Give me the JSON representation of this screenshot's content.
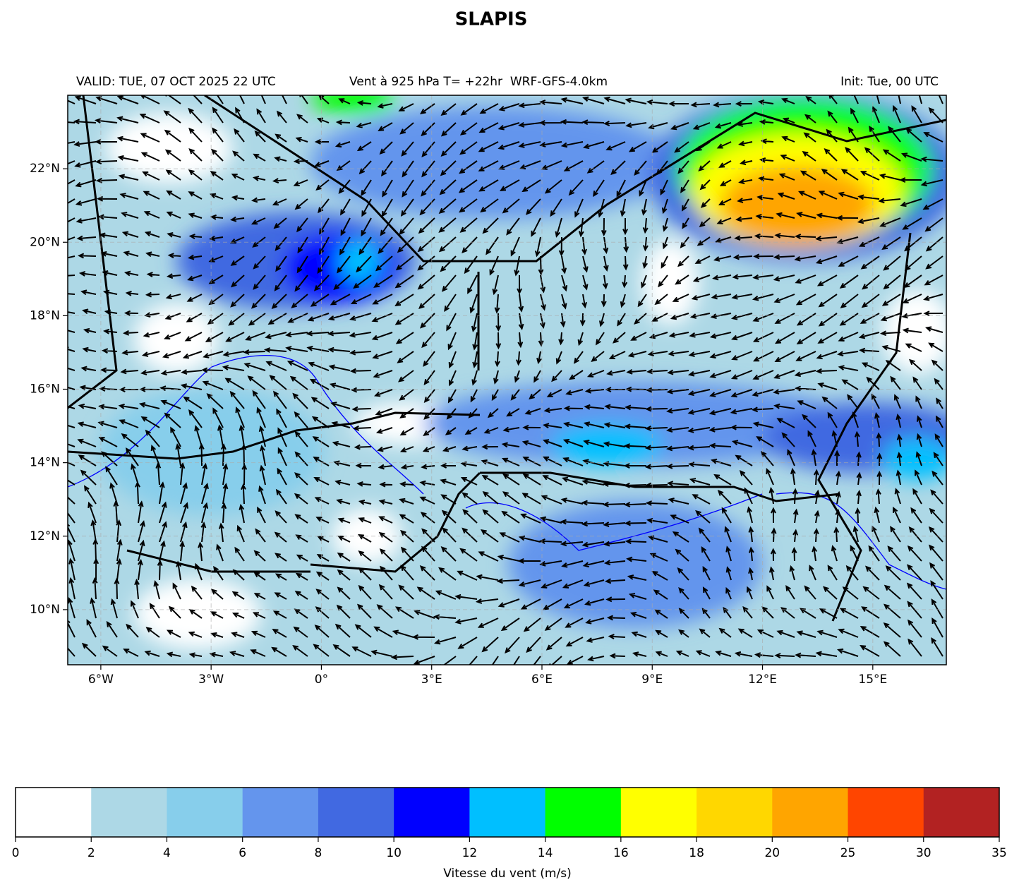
{
  "title": "SLAPIS",
  "subtitle_left": "VALID: TUE, 07 OCT 2025 22 UTC",
  "subtitle_center": "Vent à 925 hPa T= +22hr  WRF-GFS-4.0km",
  "subtitle_right": "Init: Tue, 00 UTC",
  "map": {
    "xlim": [
      -6.9,
      17
    ],
    "ylim": [
      8.5,
      24
    ],
    "xticks": [
      {
        "value": -6,
        "label": "6°W"
      },
      {
        "value": -3,
        "label": "3°W"
      },
      {
        "value": 0,
        "label": "0°"
      },
      {
        "value": 3,
        "label": "3°E"
      },
      {
        "value": 6,
        "label": "6°E"
      },
      {
        "value": 9,
        "label": "9°E"
      },
      {
        "value": 12,
        "label": "12°E"
      },
      {
        "value": 15,
        "label": "15°E"
      }
    ],
    "yticks": [
      {
        "value": 10,
        "label": "10°N"
      },
      {
        "value": 12,
        "label": "12°N"
      },
      {
        "value": 14,
        "label": "14°N"
      },
      {
        "value": 16,
        "label": "16°N"
      },
      {
        "value": 18,
        "label": "18°N"
      },
      {
        "value": 20,
        "label": "20°N"
      },
      {
        "value": 22,
        "label": "22°N"
      }
    ],
    "grid": true
  },
  "colorbar": {
    "boundaries": [
      0,
      2,
      4,
      6,
      8,
      10,
      12,
      14,
      16,
      18,
      20,
      25,
      30,
      35
    ],
    "colors": [
      "#ffffff",
      "#add8e6",
      "#87ceeb",
      "#6495ed",
      "#4169e1",
      "#0000ff",
      "#00bfff",
      "#00ff00",
      "#ffff00",
      "#ffd700",
      "#ffa500",
      "#ff4500",
      "#b22222"
    ],
    "label": "Vitesse du vent (m/s)"
  }
}
